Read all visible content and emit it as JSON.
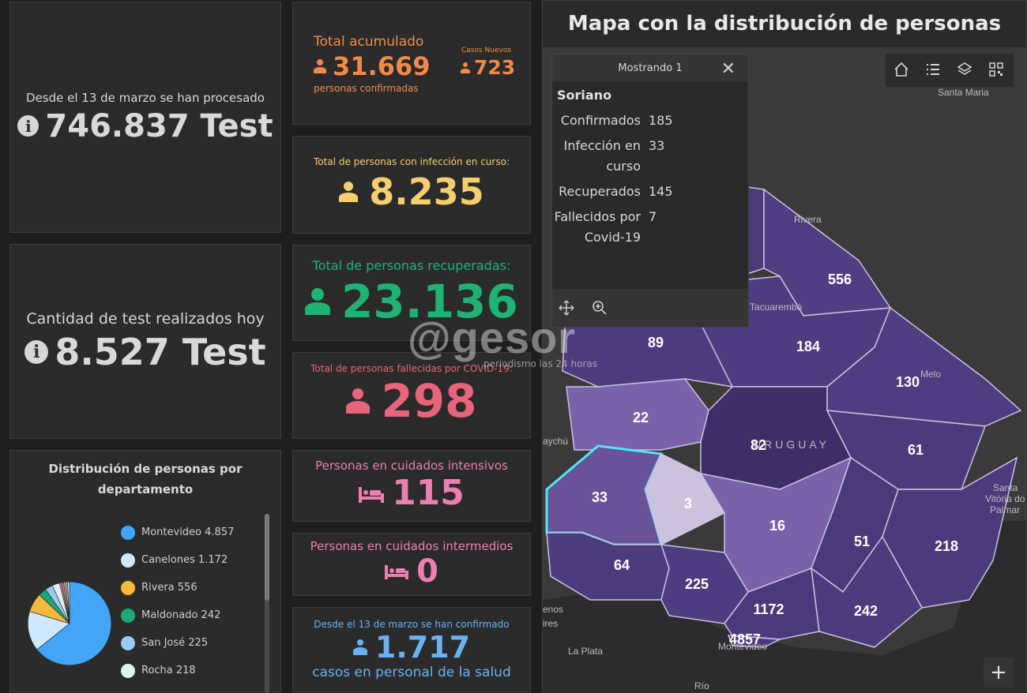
{
  "tests_total": {
    "label": "Desde el 13 de marzo se han procesado",
    "value": "746.837 Test"
  },
  "tests_today": {
    "label": "Cantidad de test realizados hoy",
    "value": "8.527 Test"
  },
  "accumulated": {
    "label": "Total acumulado",
    "value": "31.669",
    "sub": "personas confirmadas",
    "new_label": "Casos Nuevos",
    "new_value": "723",
    "color": "#f08a4b"
  },
  "active": {
    "label": "Total de personas con infección en curso:",
    "value": "8.235",
    "color": "#f5cf6e"
  },
  "recovered": {
    "label": "Total de personas recuperadas:",
    "value": "23.136",
    "color": "#1fb373"
  },
  "deceased": {
    "label": "Total de personas fallecidas por COVID-19:",
    "value": "298",
    "color": "#e8647a"
  },
  "intensive": {
    "label": "Personas en cuidados intensivos",
    "value": "115",
    "color": "#ec7fb0"
  },
  "intermediate": {
    "label": "Personas en cuidados intermedios",
    "value": "0",
    "color": "#ec7fb0"
  },
  "health_staff": {
    "label": "Desde el 13 de marzo se han confirmado",
    "value": "1.717",
    "sub": "casos en personal de la salud",
    "color": "#6ab1f2"
  },
  "distribution": {
    "title_line1": "Distribución de personas por",
    "title_line2": "departamento",
    "items": [
      {
        "name": "Montevideo",
        "value": "4.857",
        "color": "#42a5f5"
      },
      {
        "name": "Canelones",
        "value": "1.172",
        "color": "#cfe8fb"
      },
      {
        "name": "Rivera",
        "value": "556",
        "color": "#f6b93b"
      },
      {
        "name": "Maldonado",
        "value": "242",
        "color": "#1aa874"
      },
      {
        "name": "San José",
        "value": "225",
        "color": "#9cc9f5"
      },
      {
        "name": "Rocha",
        "value": "218",
        "color": "#dff3e8"
      }
    ]
  },
  "map": {
    "title": "Mapa con la distribución de personas",
    "popup": {
      "header": "Mostrando 1",
      "department": "Soriano",
      "rows": [
        {
          "key": "Confirmados",
          "value": "185"
        },
        {
          "key": "Infección en curso",
          "value": "33"
        },
        {
          "key": "Recuperados",
          "value": "145"
        },
        {
          "key": "Fallecidos por Covid-19",
          "value": "7"
        }
      ]
    },
    "labels": {
      "n556": "556",
      "n184": "184",
      "n89": "89",
      "n130": "130",
      "n22": "22",
      "n82": "82",
      "n61": "61",
      "n33": "33",
      "n3": "3",
      "n16": "16",
      "n51": "51",
      "n218": "218",
      "n64": "64",
      "n225": "225",
      "n1172": "1172",
      "n242": "242",
      "n4857": "4857"
    },
    "places": {
      "santa_maria": "Santa Maria",
      "rivera": "Rivera",
      "tacuarembo": "Tacuarembó",
      "melo": "Melo",
      "uruguay": "URUGUAY",
      "gualeguaychu": "aychú",
      "montevideo": "Montevideo",
      "la_plata": "La Plata",
      "rio": "Río",
      "buenos_aires_1": "enos",
      "buenos_aires_2": "ires",
      "santa_vitoria_1": "Santa",
      "santa_vitoria_2": "Vitória do",
      "santa_vitoria_3": "Palmar"
    }
  },
  "watermark": {
    "text": "@gesor",
    "sub": "periodismo las 24 horas"
  }
}
